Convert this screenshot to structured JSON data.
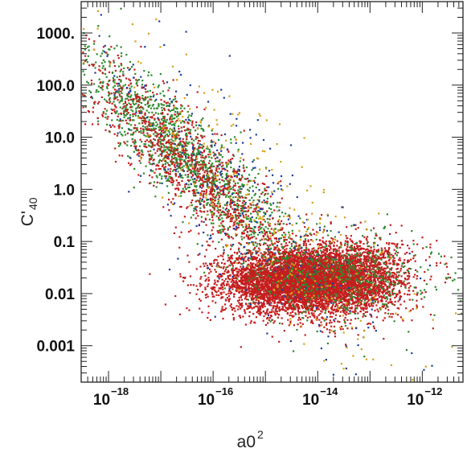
{
  "chart_data": {
    "type": "scatter",
    "title": "",
    "xlabel": "a0",
    "xlabel_superscript": "2",
    "ylabel": "C'",
    "ylabel_subscript": "40",
    "x_scale": "log",
    "y_scale": "log",
    "xlim": [
      3e-19,
      6e-12
    ],
    "ylim": [
      0.0002,
      4000
    ],
    "x_ticks": [
      {
        "value": 1e-18,
        "base": "10",
        "exp": "−18"
      },
      {
        "value": 1e-16,
        "base": "10",
        "exp": "−16"
      },
      {
        "value": 1e-14,
        "base": "10",
        "exp": "−14"
      },
      {
        "value": 1e-12,
        "base": "10",
        "exp": "−12"
      }
    ],
    "y_ticks": [
      {
        "value": 1000,
        "label": "1000."
      },
      {
        "value": 100,
        "label": "100.0"
      },
      {
        "value": 10,
        "label": "10.0"
      },
      {
        "value": 1,
        "label": "1.0"
      },
      {
        "value": 0.1,
        "label": "0.1"
      },
      {
        "value": 0.01,
        "label": "0.01"
      },
      {
        "value": 0.001,
        "label": "0.001"
      }
    ],
    "grid": false,
    "legend": "none",
    "series_colors": [
      "#c41e1e",
      "#2e8b2e",
      "#1f3fa0",
      "#d6a21a"
    ],
    "clusters": [
      {
        "color": "#c41e1e",
        "count": 5200,
        "x_log10_mean": -14.4,
        "x_log10_sd": 0.7,
        "y_log10_mean": -1.75,
        "y_log10_sd": 0.3
      },
      {
        "color": "#c41e1e",
        "count": 1800,
        "x_log10_mean": -13.3,
        "x_log10_sd": 0.55,
        "y_log10_mean": -1.65,
        "y_log10_sd": 0.35
      },
      {
        "color": "#2e8b2e",
        "count": 1400,
        "x_log10_mean": -16.5,
        "x_log10_sd": 1.1,
        "y_log10_mean": 0.6,
        "y_log10_sd": 0.45
      },
      {
        "color": "#c41e1e",
        "count": 1200,
        "x_log10_mean": -16.3,
        "x_log10_sd": 1.1,
        "y_log10_mean": 0.3,
        "y_log10_sd": 0.5
      },
      {
        "color": "#2e8b2e",
        "count": 500,
        "x_log10_mean": -13.5,
        "x_log10_sd": 0.9,
        "y_log10_mean": -1.6,
        "y_log10_sd": 0.4
      },
      {
        "color": "#1f3fa0",
        "count": 350,
        "x_log10_mean": -15.5,
        "x_log10_sd": 1.5,
        "y_log10_mean": -0.3,
        "y_log10_sd": 0.9
      },
      {
        "color": "#d6a21a",
        "count": 350,
        "x_log10_mean": -15.0,
        "x_log10_sd": 1.6,
        "y_log10_mean": -0.5,
        "y_log10_sd": 0.9
      }
    ]
  }
}
